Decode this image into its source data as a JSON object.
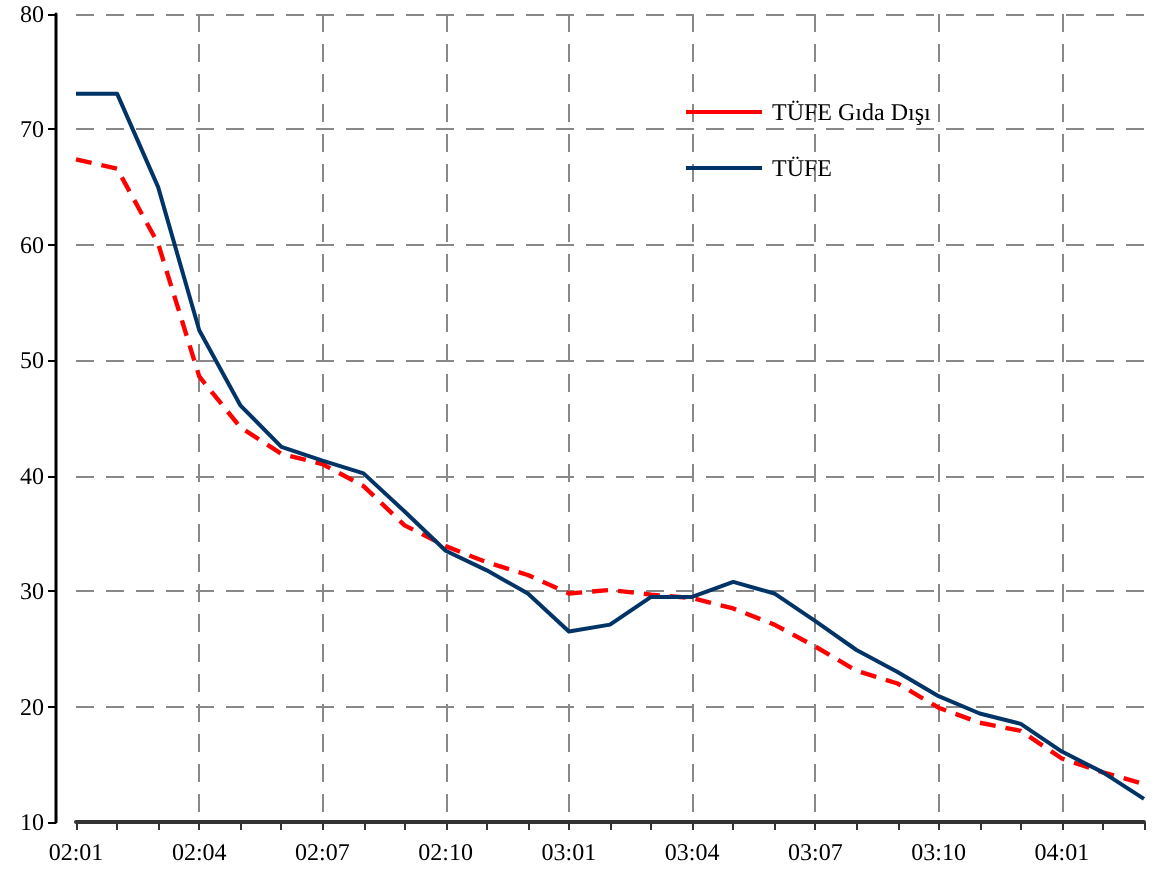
{
  "chart_data": {
    "type": "line",
    "categories": [
      "02:01",
      null,
      null,
      "02:04",
      null,
      null,
      "02:07",
      null,
      null,
      "02:10",
      null,
      null,
      "03:01",
      null,
      null,
      "03:04",
      null,
      null,
      "03:07",
      null,
      null,
      "03:10",
      null,
      null,
      "04:01",
      null,
      null
    ],
    "series": [
      {
        "name": "TÜFE Gıda Dışı",
        "color": "#ff0000",
        "line_style": "dashed",
        "values": [
          67.4,
          66.6,
          60.1,
          48.6,
          44.2,
          41.9,
          41.0,
          39.1,
          35.7,
          33.9,
          32.5,
          31.4,
          29.8,
          30.1,
          29.7,
          29.4,
          28.5,
          27.1,
          25.2,
          23.1,
          22.0,
          19.9,
          18.6,
          17.9,
          15.5,
          14.3,
          13.3
        ]
      },
      {
        "name": "TÜFE",
        "color": "#003366",
        "line_style": "solid",
        "values": [
          73.1,
          73.1,
          65.0,
          52.6,
          46.1,
          42.5,
          41.3,
          40.2,
          36.9,
          33.5,
          31.8,
          29.8,
          26.5,
          27.1,
          29.5,
          29.5,
          30.8,
          29.8,
          27.4,
          24.9,
          23.0,
          20.9,
          19.4,
          18.5,
          16.1,
          14.3,
          12.0
        ]
      }
    ],
    "ylim": [
      10,
      80
    ],
    "yticks": [
      10,
      20,
      30,
      40,
      50,
      60,
      70,
      80
    ],
    "grid": true,
    "legend": "top right",
    "marker": "none"
  }
}
